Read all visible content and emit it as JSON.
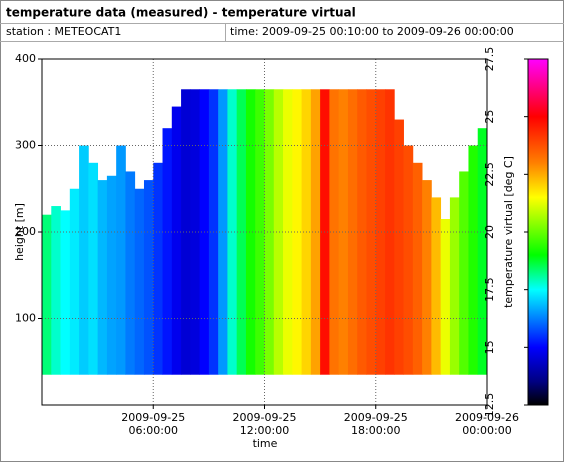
{
  "chart_data": {
    "type": "heatmap",
    "title": "temperature data (measured) - temperature virtual",
    "station": "station : METEOCAT1",
    "time_range": "time: 2009-09-25 00:10:00 to 2009-09-26 00:00:00",
    "xlabel": "time",
    "ylabel": "height [m]",
    "colorbar_label": "temperature virtual [deg C]",
    "x": [
      "2009-09-25T00:00",
      "2009-09-25T00:30",
      "2009-09-25T01:00",
      "2009-09-25T01:30",
      "2009-09-25T02:00",
      "2009-09-25T02:30",
      "2009-09-25T03:00",
      "2009-09-25T03:30",
      "2009-09-25T04:00",
      "2009-09-25T04:30",
      "2009-09-25T05:00",
      "2009-09-25T05:30",
      "2009-09-25T06:00",
      "2009-09-25T06:30",
      "2009-09-25T07:00",
      "2009-09-25T07:30",
      "2009-09-25T08:00",
      "2009-09-25T08:30",
      "2009-09-25T09:00",
      "2009-09-25T09:30",
      "2009-09-25T10:00",
      "2009-09-25T10:30",
      "2009-09-25T11:00",
      "2009-09-25T11:30",
      "2009-09-25T12:00",
      "2009-09-25T12:30",
      "2009-09-25T13:00",
      "2009-09-25T13:30",
      "2009-09-25T14:00",
      "2009-09-25T14:30",
      "2009-09-25T15:00",
      "2009-09-25T15:30",
      "2009-09-25T16:00",
      "2009-09-25T16:30",
      "2009-09-25T17:00",
      "2009-09-25T17:30",
      "2009-09-25T18:00",
      "2009-09-25T18:30",
      "2009-09-25T19:00",
      "2009-09-25T19:30",
      "2009-09-25T20:00",
      "2009-09-25T20:30",
      "2009-09-25T21:00",
      "2009-09-25T21:30",
      "2009-09-25T22:00",
      "2009-09-25T22:30",
      "2009-09-25T23:00",
      "2009-09-25T23:30"
    ],
    "values": [
      18.3,
      17.8,
      17.5,
      17.3,
      17,
      17.2,
      16.8,
      16.6,
      16.5,
      16.2,
      16,
      15.8,
      15.5,
      15.2,
      14.8,
      14.5,
      14.6,
      15,
      15.5,
      16.5,
      17.8,
      18.5,
      19.2,
      19.6,
      20.2,
      20.8,
      21.3,
      21.6,
      22,
      22.6,
      24.8,
      23.2,
      23,
      23.3,
      23.6,
      23.8,
      24,
      24.2,
      24,
      23.8,
      23.5,
      23,
      22.3,
      21.3,
      20.5,
      19.8,
      19.3,
      18.8
    ],
    "tops": [
      220,
      230,
      225,
      250,
      300,
      280,
      260,
      265,
      300,
      270,
      250,
      260,
      280,
      320,
      345,
      365,
      365,
      365,
      365,
      365,
      365,
      365,
      365,
      365,
      365,
      365,
      365,
      365,
      365,
      365,
      365,
      365,
      365,
      365,
      365,
      365,
      365,
      365,
      330,
      300,
      280,
      260,
      240,
      215,
      240,
      270,
      300,
      320
    ],
    "base": 35,
    "xlim": [
      "2009-09-25T00:00:00",
      "2009-09-26T00:00:00"
    ],
    "xticks": [
      {
        "value": "2009-09-25T06:00:00",
        "label": "2009-09-25\n06:00:00"
      },
      {
        "value": "2009-09-25T12:00:00",
        "label": "2009-09-25\n12:00:00"
      },
      {
        "value": "2009-09-25T18:00:00",
        "label": "2009-09-25\n18:00:00"
      },
      {
        "value": "2009-09-26T00:00:00",
        "label": "2009-09-26\n00:00:00"
      }
    ],
    "ylim": [
      0,
      400
    ],
    "yticks": [
      100,
      200,
      300,
      400
    ],
    "grid": true,
    "clim": [
      12.5,
      27.5
    ],
    "cticks": [
      12.5,
      15,
      17.5,
      20,
      22.5,
      25,
      27.5
    ],
    "colormap": [
      {
        "value": 12.5,
        "color": "#000000"
      },
      {
        "value": 13.5,
        "color": "#000080"
      },
      {
        "value": 15,
        "color": "#0000ff"
      },
      {
        "value": 17.5,
        "color": "#00ffff"
      },
      {
        "value": 19,
        "color": "#00ff00"
      },
      {
        "value": 21.5,
        "color": "#ffff00"
      },
      {
        "value": 23,
        "color": "#ff8000"
      },
      {
        "value": 25,
        "color": "#ff0000"
      },
      {
        "value": 27.5,
        "color": "#ff00ff"
      }
    ]
  }
}
